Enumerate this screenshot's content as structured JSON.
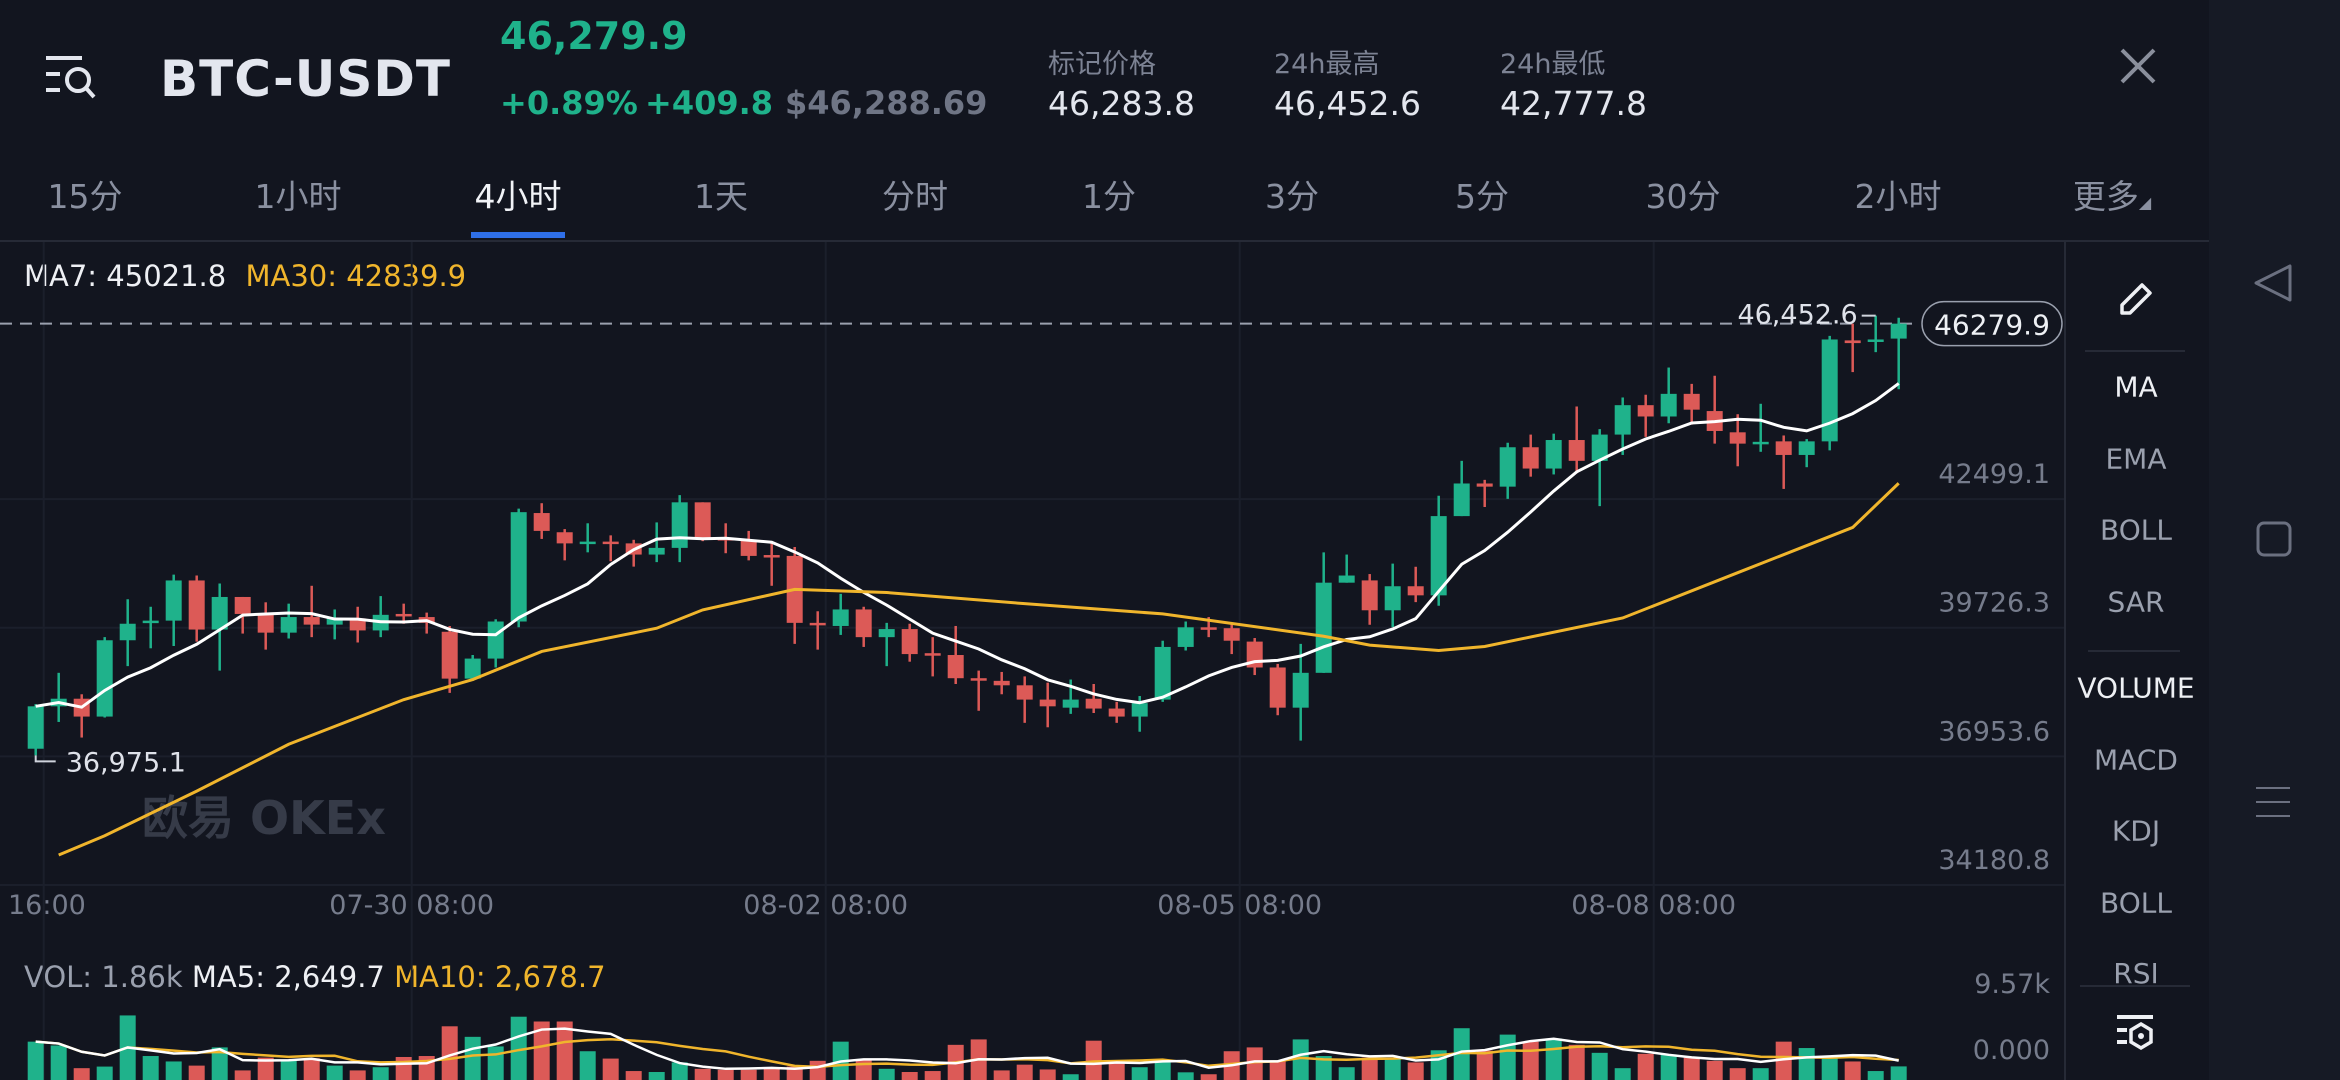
{
  "header": {
    "pair": "BTC-USDT",
    "last_price": "46,279.9",
    "change_pct": "+0.89%",
    "change_abs": "+409.8",
    "usd_price": "$46,288.69",
    "stats": [
      {
        "label": "标记价格",
        "value": "46,283.8"
      },
      {
        "label": "24h最高",
        "value": "46,452.6"
      },
      {
        "label": "24h最低",
        "value": "42,777.8"
      }
    ]
  },
  "tabs": [
    {
      "label": "15分"
    },
    {
      "label": "1小时"
    },
    {
      "label": "4小时",
      "active": true
    },
    {
      "label": "1天"
    },
    {
      "label": "分时"
    },
    {
      "label": "1分"
    },
    {
      "label": "3分"
    },
    {
      "label": "5分"
    },
    {
      "label": "30分"
    },
    {
      "label": "2小时"
    },
    {
      "label": "更多"
    }
  ],
  "legend": {
    "ma7": "MA7: 45021.8",
    "ma30": "MA30: 42839.9"
  },
  "vol_legend": {
    "vol": "VOL: 1.86k",
    "ma5": "MA5: 2,649.7",
    "ma10": "MA10: 2,678.7"
  },
  "watermark": "欧易 OKEx",
  "side_panel": {
    "main": [
      "MA",
      "EMA",
      "BOLL",
      "SAR"
    ],
    "sub": [
      "VOLUME",
      "MACD",
      "KDJ",
      "BOLL",
      "RSI"
    ],
    "active_main": "MA",
    "active_sub": "VOLUME"
  },
  "colors": {
    "up": "#1fb28b",
    "down": "#dc5a57",
    "ma7": "#ffffff",
    "ma30": "#f0b52c",
    "accent": "#2f6fe8",
    "bg": "#12151f"
  },
  "chart_data": {
    "type": "candlestick",
    "interval": "4小时",
    "ylim": [
      34180.8,
      48040
    ],
    "y_ticks": [
      "42499.1",
      "39726.3",
      "36953.6",
      "34180.8"
    ],
    "y_tick_values": [
      42499.1,
      39726.3,
      36953.6,
      34180.8
    ],
    "x_ticks": [
      {
        "index": 0,
        "label": "16:00"
      },
      {
        "index": 16,
        "label": "07-30 08:00"
      },
      {
        "index": 34,
        "label": "08-02 08:00"
      },
      {
        "index": 52,
        "label": "08-05 08:00"
      },
      {
        "index": 70,
        "label": "08-08 08:00"
      }
    ],
    "current_price": "46279.9",
    "current_price_value": 46279.9,
    "high_marker": "46,452.6",
    "high_marker_value": 46452.6,
    "low_marker": "36,975.1",
    "low_marker_value": 36975.1,
    "ohlc": [
      [
        37118,
        38080,
        36975.1,
        38032
      ],
      [
        38032,
        38754,
        37695,
        38196
      ],
      [
        38196,
        38292,
        37359,
        37811
      ],
      [
        37811,
        39523,
        37792,
        39456
      ],
      [
        39456,
        40341,
        38898,
        39812
      ],
      [
        39831,
        40178,
        39283,
        39879
      ],
      [
        39879,
        40870,
        39331,
        40745
      ],
      [
        40745,
        40851,
        39427,
        39687
      ],
      [
        39687,
        40678,
        38802,
        40389
      ],
      [
        40389,
        40389,
        39600,
        40023
      ],
      [
        40004,
        40274,
        39254,
        39620
      ],
      [
        39620,
        40245,
        39494,
        39956
      ],
      [
        39956,
        40630,
        39523,
        39793
      ],
      [
        39793,
        40120,
        39475,
        39927
      ],
      [
        39927,
        40178,
        39408,
        39668
      ],
      [
        39668,
        40408,
        39523,
        40004
      ],
      [
        40023,
        40245,
        39812,
        39975
      ],
      [
        39956,
        40052,
        39600,
        39831
      ],
      [
        39639,
        39764,
        38321,
        38629
      ],
      [
        38629,
        39138,
        38581,
        39061
      ],
      [
        39061,
        39908,
        38869,
        39860
      ],
      [
        39860,
        42294,
        39735,
        42217
      ],
      [
        42198,
        42410,
        41640,
        41813
      ],
      [
        41784,
        41852,
        41178,
        41544
      ],
      [
        41544,
        41977,
        41351,
        41582
      ],
      [
        41582,
        41717,
        41159,
        41544
      ],
      [
        41544,
        41621,
        41043,
        41303
      ],
      [
        41303,
        41996,
        41140,
        41447
      ],
      [
        41447,
        42583,
        41140,
        42429
      ],
      [
        42429,
        42429,
        41592,
        41659
      ],
      [
        41659,
        41977,
        41332,
        41620
      ],
      [
        41620,
        41813,
        41178,
        41274
      ],
      [
        41293,
        41592,
        40630,
        41255
      ],
      [
        41274,
        41467,
        39379,
        39831
      ],
      [
        39831,
        40081,
        39254,
        39793
      ],
      [
        39764,
        40456,
        39571,
        40120
      ],
      [
        40120,
        40178,
        39312,
        39523
      ],
      [
        39523,
        39831,
        38898,
        39697
      ],
      [
        39697,
        39812,
        38994,
        39158
      ],
      [
        39177,
        39523,
        38677,
        39138
      ],
      [
        39138,
        39764,
        38513,
        38638
      ],
      [
        38638,
        38802,
        37936,
        38600
      ],
      [
        38581,
        38773,
        38292,
        38485
      ],
      [
        38485,
        38677,
        37676,
        38177
      ],
      [
        38177,
        38542,
        37580,
        38032
      ],
      [
        38003,
        38609,
        37869,
        38177
      ],
      [
        38196,
        38513,
        37888,
        37984
      ],
      [
        37984,
        38128,
        37676,
        37811
      ],
      [
        37811,
        38254,
        37484,
        38100
      ],
      [
        38177,
        39446,
        38128,
        39312
      ],
      [
        39312,
        39860,
        39235,
        39735
      ],
      [
        39735,
        39956,
        39523,
        39696
      ],
      [
        39716,
        39812,
        39158,
        39446
      ],
      [
        39427,
        39504,
        38706,
        38869
      ],
      [
        38869,
        38946,
        37840,
        38003
      ],
      [
        38003,
        39379,
        37292,
        38754
      ],
      [
        38754,
        41351,
        38754,
        40697
      ],
      [
        40697,
        41303,
        40697,
        40851
      ],
      [
        40746,
        40883,
        39790,
        40102
      ],
      [
        40102,
        41108,
        39741,
        40620
      ],
      [
        40620,
        41040,
        40278,
        40424
      ],
      [
        40424,
        42572,
        40200,
        42132
      ],
      [
        42132,
        43323,
        42132,
        42835
      ],
      [
        42835,
        42913,
        42328,
        42767
      ],
      [
        42767,
        43713,
        42503,
        43616
      ],
      [
        43616,
        43889,
        42982,
        43157
      ],
      [
        43157,
        43909,
        43030,
        43772
      ],
      [
        43772,
        44494,
        43059,
        43323
      ],
      [
        43323,
        44006,
        42347,
        43889
      ],
      [
        43889,
        44689,
        43450,
        44523
      ],
      [
        44523,
        44748,
        43840,
        44279
      ],
      [
        44279,
        45334,
        44133,
        44767
      ],
      [
        44767,
        44982,
        44104,
        44426
      ],
      [
        44396,
        45158,
        43694,
        43967
      ],
      [
        43938,
        44328,
        43206,
        43694
      ],
      [
        43694,
        44553,
        43518,
        43733
      ],
      [
        43743,
        43870,
        42718,
        43450
      ],
      [
        43450,
        43792,
        43186,
        43743
      ],
      [
        43743,
        46017,
        43548,
        45939
      ],
      [
        45919,
        46280,
        45236,
        45861
      ],
      [
        45890,
        46452.6,
        45666,
        45939
      ],
      [
        45958,
        46408,
        44865,
        46279.9
      ]
    ],
    "ma30": [
      [
        1,
        34828
      ],
      [
        3,
        35242
      ],
      [
        7,
        36204
      ],
      [
        11,
        37214
      ],
      [
        16,
        38176
      ],
      [
        19,
        38609
      ],
      [
        22,
        39215
      ],
      [
        27,
        39715
      ],
      [
        29,
        40110
      ],
      [
        33,
        40553
      ],
      [
        37,
        40485
      ],
      [
        43,
        40245
      ],
      [
        49,
        40024
      ],
      [
        56,
        39543
      ],
      [
        58,
        39351
      ],
      [
        61,
        39234
      ],
      [
        63,
        39322
      ],
      [
        69,
        39936
      ],
      [
        74,
        40912
      ],
      [
        79,
        41888
      ],
      [
        81,
        42839.9
      ]
    ],
    "volume": {
      "y_ticks": [
        "9.57k",
        "0.000"
      ],
      "ymax": 9570,
      "values": [
        5244,
        4720,
        1617,
        1835,
        8827,
        3278,
        2535,
        1967,
        4457,
        1311,
        3059,
        2709,
        2972,
        1967,
        1311,
        1748,
        3146,
        3278,
        7342,
        5900,
        4589,
        8653,
        7997,
        7997,
        3933,
        2928,
        1224,
        1093,
        2404,
        1530,
        1398,
        1398,
        1530,
        1835,
        2622,
        5244,
        2840,
        1530,
        1093,
        1224,
        4807,
        5550,
        1311,
        2098,
        1442,
        787,
        5375,
        2272,
        1748,
        2535,
        1049,
        787,
        3933,
        4457,
        2535,
        5550,
        3278,
        1748,
        3059,
        2840,
        2404,
        4064,
        7079,
        4020,
        6205,
        5244,
        5681,
        4807,
        3714,
        1617,
        3583,
        3496,
        3059,
        2622,
        1617,
        1617,
        5244,
        4370,
        3278,
        2535,
        1224,
        1860
      ]
    }
  }
}
